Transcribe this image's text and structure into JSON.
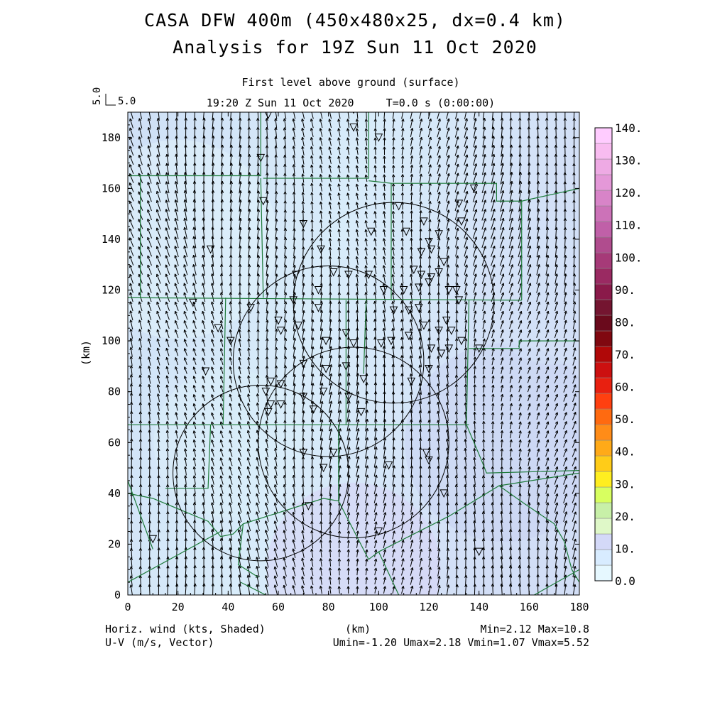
{
  "header": {
    "title_line1": "CASA DFW 400m (450x480x25, dx=0.4 km)",
    "title_line2": "Analysis for 19Z Sun 11 Oct 2020",
    "subtitle": "First level above ground (surface)",
    "time_line": "19:20 Z Sun 11 Oct 2020     T=0.0 s (0:00:00)",
    "ref_vector_value": "5.0",
    "ref_vector_label": "5.0"
  },
  "footer": {
    "left_line1": "Horiz. wind (kts, Shaded)",
    "left_line2": "U-V (m/s, Vector)",
    "center": "(km)",
    "right_line1": "Min=2.12 Max=10.8",
    "right_line2": "Umin=-1.20 Umax=2.18 Vmin=1.07 Vmax=5.52"
  },
  "chart_data": {
    "type": "heatmap",
    "title": "CASA DFW 400m (450x480x25, dx=0.4 km)",
    "subtitle": "Analysis for 19Z Sun 11 Oct 2020",
    "xlabel": "(km)",
    "ylabel": "(km)",
    "xlim": [
      0,
      180
    ],
    "ylim": [
      0,
      190
    ],
    "x_ticks": [
      0,
      20,
      40,
      60,
      80,
      100,
      120,
      140,
      160,
      180
    ],
    "y_ticks": [
      0,
      20,
      40,
      60,
      80,
      100,
      120,
      140,
      160,
      180
    ],
    "field": "Horiz. wind (kts, Shaded)",
    "vectors": "U-V (m/s, Vector)",
    "stats": {
      "min": 2.12,
      "max": 10.8,
      "umin": -1.2,
      "umax": 2.18,
      "vmin": 1.07,
      "vmax": 5.52
    },
    "colorbar": {
      "levels": [
        0,
        10,
        20,
        30,
        40,
        50,
        60,
        70,
        80,
        90,
        100,
        110,
        120,
        130,
        140
      ],
      "tick_labels": [
        "0.0",
        "10.",
        "20.",
        "30.",
        "40.",
        "50.",
        "60.",
        "70.",
        "80.",
        "90.",
        "100.",
        "110.",
        "120.",
        "130.",
        "140."
      ],
      "colors": [
        "#e6f8ff",
        "#d8ecff",
        "#d4d9f8",
        "#dff8c8",
        "#c8f0a8",
        "#d8ff60",
        "#ffee20",
        "#ffcc18",
        "#ffaa18",
        "#ff8c18",
        "#ff6a10",
        "#ff4010",
        "#e82010",
        "#cc1010",
        "#b00808",
        "#800810",
        "#6a0a1c",
        "#741530",
        "#8a1a4a",
        "#9a2a62",
        "#a63a78",
        "#b04c8e",
        "#c060a8",
        "#cc72b8",
        "#d884c8",
        "#e498d8",
        "#eeaae4",
        "#f8bcf0",
        "#ffccff"
      ]
    },
    "radar_circles_center_radius_km": [
      [
        53,
        48,
        35
      ],
      [
        80,
        92,
        38
      ],
      [
        90,
        60,
        38
      ],
      [
        106,
        115,
        40
      ]
    ],
    "wind_vector_sample": {
      "u_ms": 0.3,
      "v_ms": 4.5,
      "note_units": "m/s"
    }
  }
}
